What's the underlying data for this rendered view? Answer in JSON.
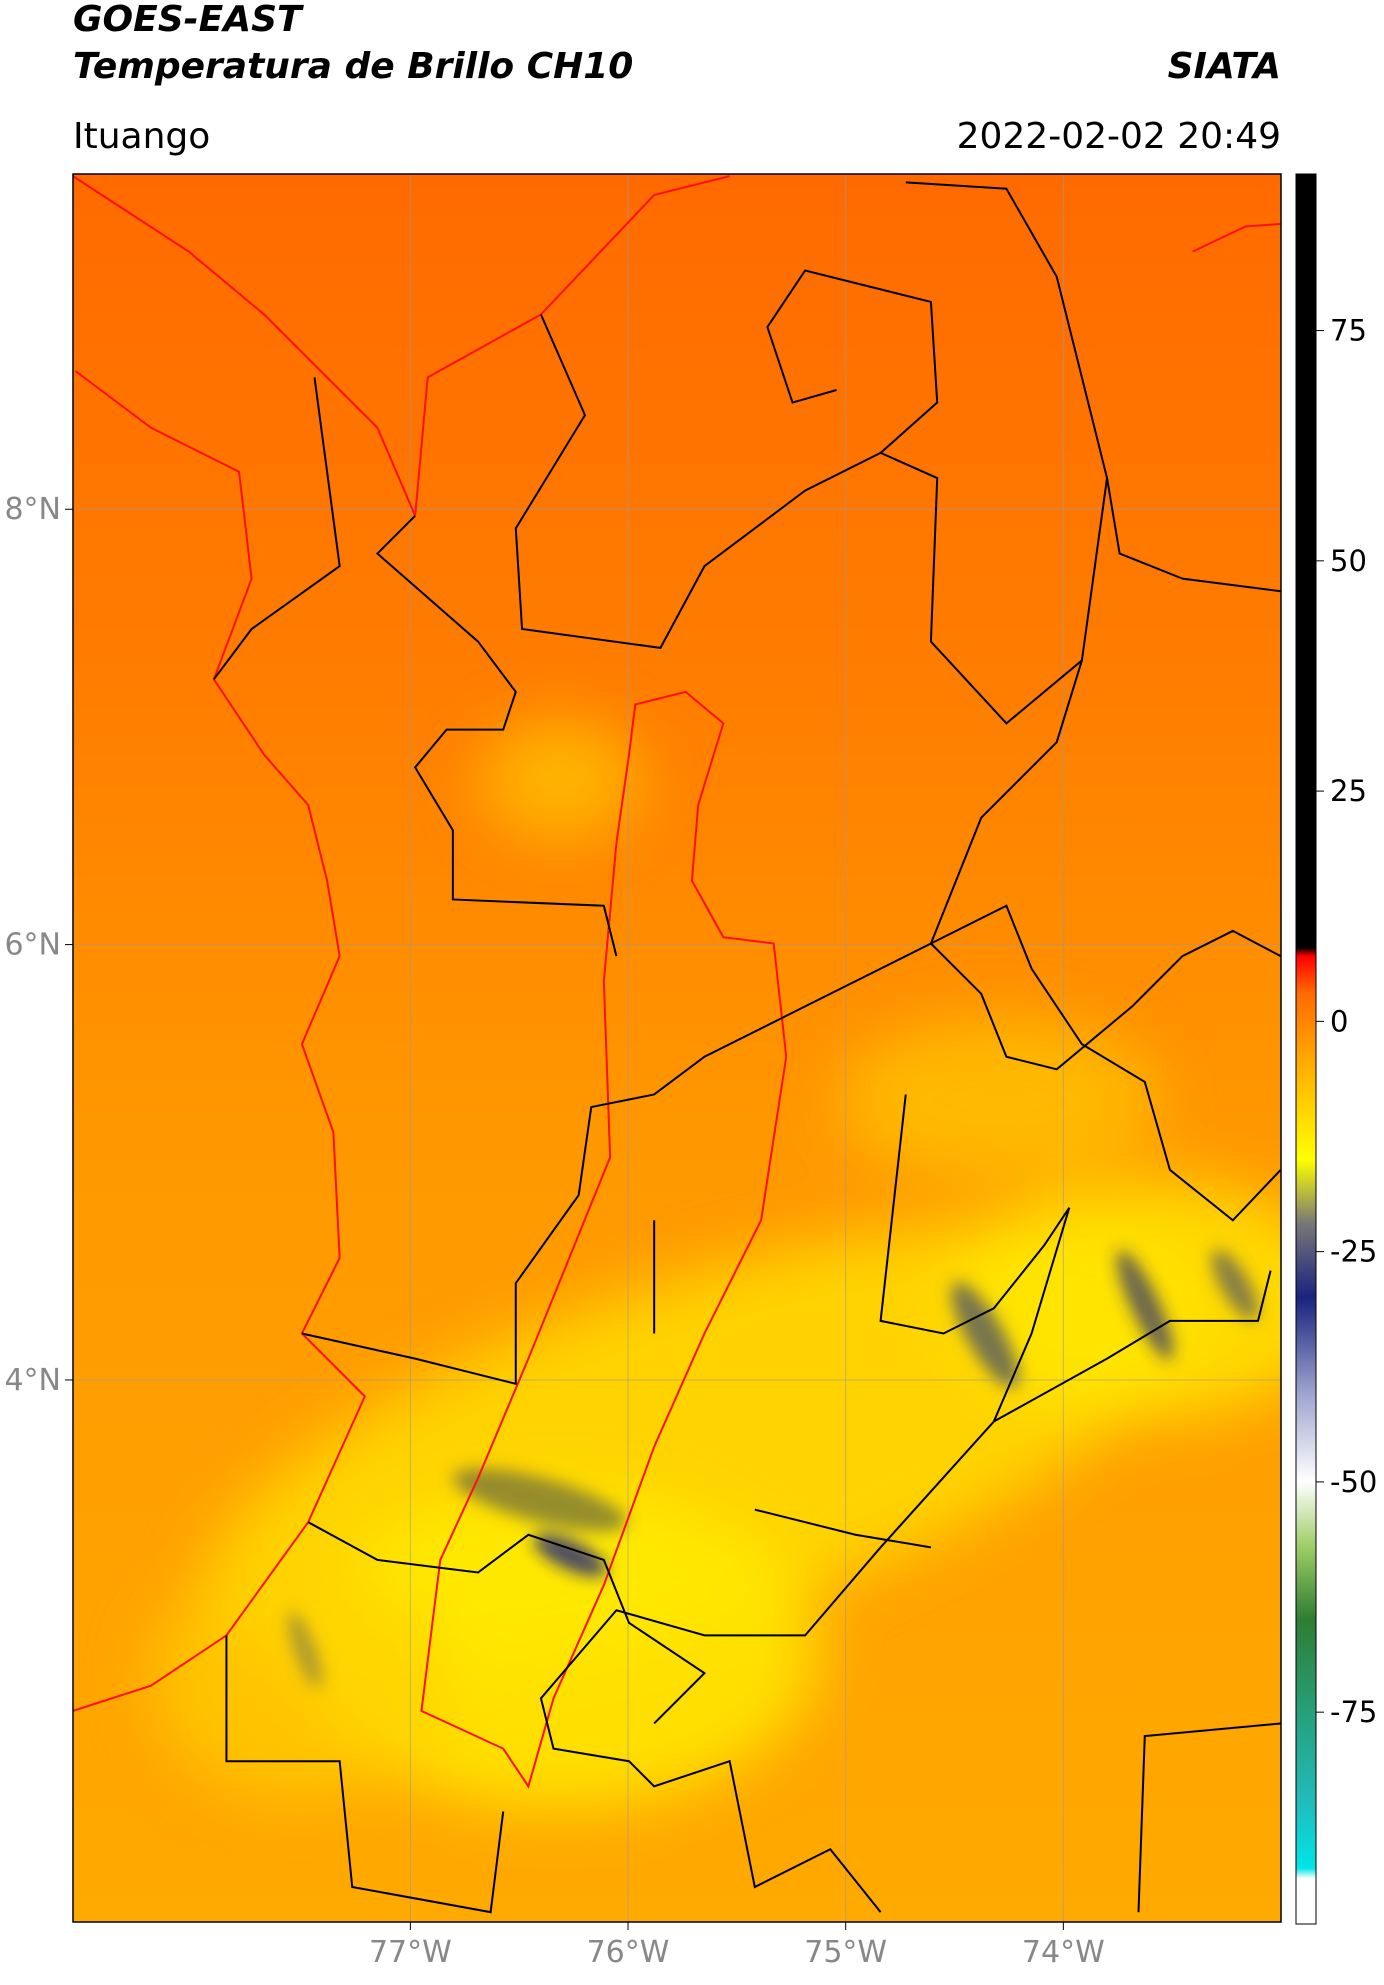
{
  "header": {
    "title_line1": "GOES-EAST",
    "title_line2": "Temperatura de Brillo CH10",
    "source": "SIATA",
    "location": "Ituango",
    "datetime": "2022-02-02 20:49"
  },
  "map": {
    "xlim": [
      -78.55,
      -73.0
    ],
    "ylim": [
      1.51,
      9.54
    ],
    "xticks": [
      {
        "value": -77,
        "label": "77°W"
      },
      {
        "value": -76,
        "label": "76°W"
      },
      {
        "value": -75,
        "label": "75°W"
      },
      {
        "value": -74,
        "label": "74°W"
      }
    ],
    "yticks": [
      {
        "value": 8,
        "label": "8°N"
      },
      {
        "value": 6,
        "label": "6°N"
      },
      {
        "value": 4,
        "label": "4°N"
      }
    ],
    "grid": true
  },
  "colorbar": {
    "lim": [
      -98,
      92
    ],
    "ticks": [
      75,
      50,
      25,
      0,
      -25,
      -50,
      -75
    ]
  }
}
